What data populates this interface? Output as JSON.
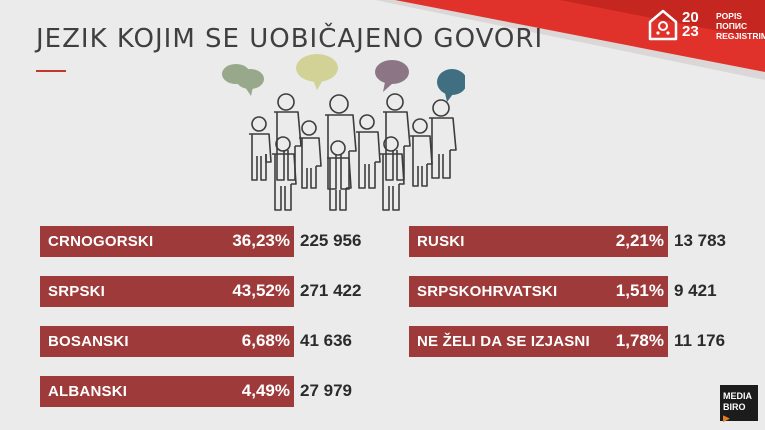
{
  "header": {
    "title": "JEZIK KOJIM SE UOBIČAJENO GOVORI"
  },
  "logo": {
    "year_top": "20",
    "year_bottom": "23",
    "line1": "POPIS",
    "line2": "ПОПИС",
    "line3": "REGJISTRIMI"
  },
  "stats": {
    "left": [
      {
        "language": "CRNOGORSKI",
        "percent": "36,23%",
        "count": "225 956"
      },
      {
        "language": "SRPSKI",
        "percent": "43,52%",
        "count": "271 422"
      },
      {
        "language": "BOSANSKI",
        "percent": "6,68%",
        "count": "41 636"
      },
      {
        "language": "ALBANSKI",
        "percent": "4,49%",
        "count": "27 979"
      }
    ],
    "right": [
      {
        "language": "RUSKI",
        "percent": "2,21%",
        "count": "13 783"
      },
      {
        "language": "SRPSKOHRVATSKI",
        "percent": "1,51%",
        "count": "9 421"
      },
      {
        "language": "NE ŽELI DA SE IZJASNI",
        "percent": "1,78%",
        "count": "11 176"
      }
    ]
  },
  "watermark": {
    "line1": "MEDIA",
    "line2": "BIRO",
    "play_icon": "play-triangle-icon"
  },
  "colors": {
    "background": "#ebebeb",
    "bar": "#9e3a3a",
    "banner": "#e0322b",
    "speech_green": "#98a88a",
    "speech_yellow": "#d2d296",
    "speech_purple": "#8c7686",
    "speech_teal": "#3f6f80"
  }
}
